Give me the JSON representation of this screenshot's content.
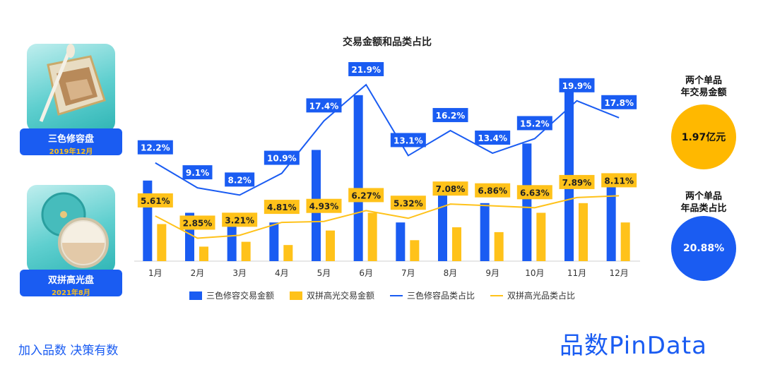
{
  "products": [
    {
      "name": "三色修容盘",
      "date": "2019年12月",
      "image_icon": "contour-palette-photo"
    },
    {
      "name": "双拼高光盘",
      "date": "2021年8月",
      "image_icon": "highlighter-compact-photo"
    }
  ],
  "kpis": [
    {
      "label_line1": "两个单品",
      "label_line2": "年交易金额",
      "value": "1.97亿元",
      "color": "#ffb800"
    },
    {
      "label_line1": "两个单品",
      "label_line2": "年品类占比",
      "value": "20.88%",
      "color": "#1a5cf2"
    }
  ],
  "footer": {
    "slogan": "加入品数 决策有数",
    "brand": "品数PinData"
  },
  "colors": {
    "blue": "#1a5cf2",
    "yellow": "#ffc21a"
  },
  "chart_data": {
    "type": "bar",
    "title": "交易金额和品类占比",
    "categories": [
      "1月",
      "2月",
      "3月",
      "4月",
      "5月",
      "6月",
      "7月",
      "8月",
      "9月",
      "10月",
      "11月",
      "12月"
    ],
    "series": [
      {
        "name": "三色修容交易金额",
        "kind": "bar",
        "color": "#1a5cf2",
        "axis": "left",
        "values": [
          5.0,
          3.0,
          3.0,
          2.4,
          6.9,
          10.3,
          2.4,
          4.9,
          3.6,
          7.3,
          10.7,
          5.2
        ]
      },
      {
        "name": "双拼高光交易金额",
        "kind": "bar",
        "color": "#ffc21a",
        "axis": "left",
        "values": [
          2.3,
          0.9,
          1.2,
          1.0,
          1.9,
          3.0,
          1.3,
          2.1,
          1.8,
          3.0,
          3.6,
          2.4
        ]
      },
      {
        "name": "三色修容品类占比",
        "kind": "line",
        "color": "#1a5cf2",
        "axis": "right",
        "values": [
          12.2,
          9.1,
          8.2,
          10.9,
          17.4,
          21.9,
          13.1,
          16.2,
          13.4,
          15.2,
          19.9,
          17.8
        ],
        "labels": [
          "12.2%",
          "9.1%",
          "8.2%",
          "10.9%",
          "17.4%",
          "21.9%",
          "13.1%",
          "16.2%",
          "13.4%",
          "15.2%",
          "19.9%",
          "17.8%"
        ]
      },
      {
        "name": "双拼高光品类占比",
        "kind": "line",
        "color": "#ffc21a",
        "axis": "right",
        "values": [
          5.61,
          2.85,
          3.21,
          4.81,
          4.93,
          6.27,
          5.32,
          7.08,
          6.86,
          6.63,
          7.89,
          8.11
        ],
        "labels": [
          "5.61%",
          "2.85%",
          "3.21%",
          "4.81%",
          "4.93%",
          "6.27%",
          "5.32%",
          "7.08%",
          "6.86%",
          "6.63%",
          "7.89%",
          "8.11%"
        ]
      }
    ],
    "ylim_left": [
      0,
      12
    ],
    "ylim_right": [
      0,
      24
    ],
    "legend_position": "bottom",
    "grid": false
  }
}
